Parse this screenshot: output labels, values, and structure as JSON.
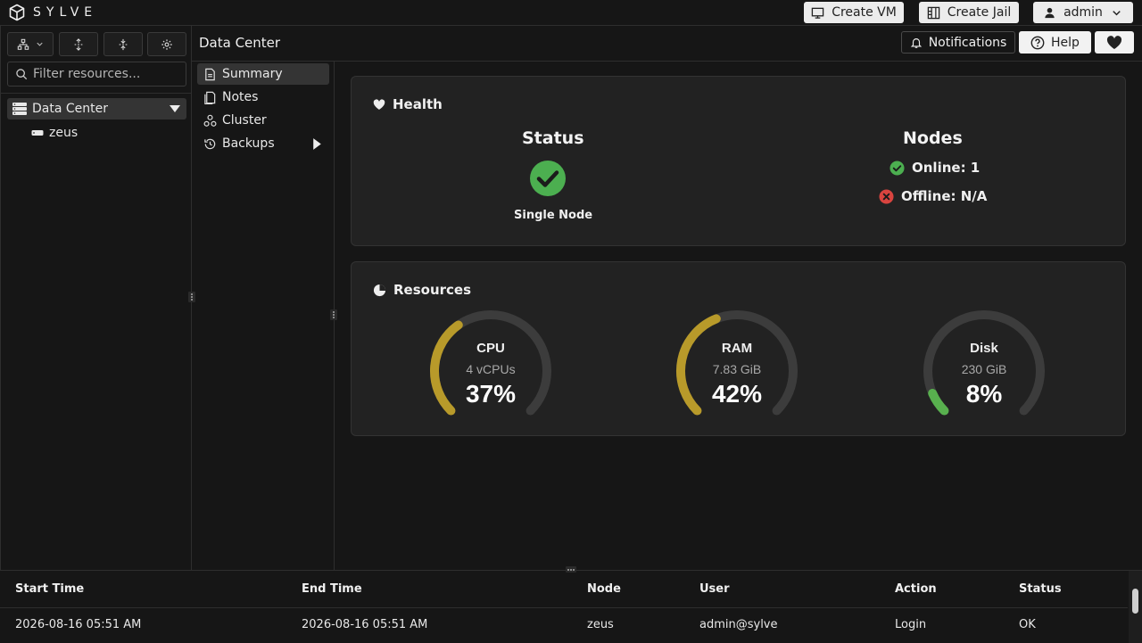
{
  "app": {
    "name": "SYLVE"
  },
  "topbar": {
    "create_vm": "Create VM",
    "create_jail": "Create Jail",
    "user": "admin"
  },
  "sidebar": {
    "filter_placeholder": "Filter resources...",
    "tree": {
      "root": "Data Center",
      "children": [
        "zeus"
      ]
    }
  },
  "header": {
    "title": "Data Center",
    "notifications": "Notifications",
    "help": "Help"
  },
  "subnav": {
    "items": [
      {
        "label": "Summary",
        "icon": "document-icon",
        "active": true
      },
      {
        "label": "Notes",
        "icon": "notes-icon"
      },
      {
        "label": "Cluster",
        "icon": "cluster-icon"
      },
      {
        "label": "Backups",
        "icon": "history-icon",
        "has_submenu": true
      }
    ]
  },
  "health": {
    "title": "Health",
    "status_heading": "Status",
    "status_value": "Single Node",
    "nodes_heading": "Nodes",
    "online": "Online: 1",
    "offline": "Offline: N/A"
  },
  "resources": {
    "title": "Resources",
    "gauges": [
      {
        "name": "CPU",
        "sub": "4 vCPUs",
        "pct_label": "37%",
        "value": 0.37,
        "color": "#b89a2a"
      },
      {
        "name": "RAM",
        "sub": "7.83 GiB",
        "pct_label": "42%",
        "value": 0.42,
        "color": "#b89a2a"
      },
      {
        "name": "Disk",
        "sub": "230 GiB",
        "pct_label": "8%",
        "value": 0.08,
        "color": "#58b04e"
      }
    ]
  },
  "table": {
    "headers": [
      "Start Time",
      "End Time",
      "Node",
      "User",
      "Action",
      "Status"
    ],
    "rows": [
      [
        "2026-08-16 05:51 AM",
        "2026-08-16 05:51 AM",
        "zeus",
        "admin@sylve",
        "Login",
        "OK"
      ]
    ]
  },
  "colors": {
    "background": "#161616",
    "card": "#222222",
    "success": "#4caf50",
    "error": "#d9443f",
    "gauge_warn": "#b89a2a",
    "gauge_ok": "#58b04e",
    "gauge_track": "#3c3c3c"
  }
}
